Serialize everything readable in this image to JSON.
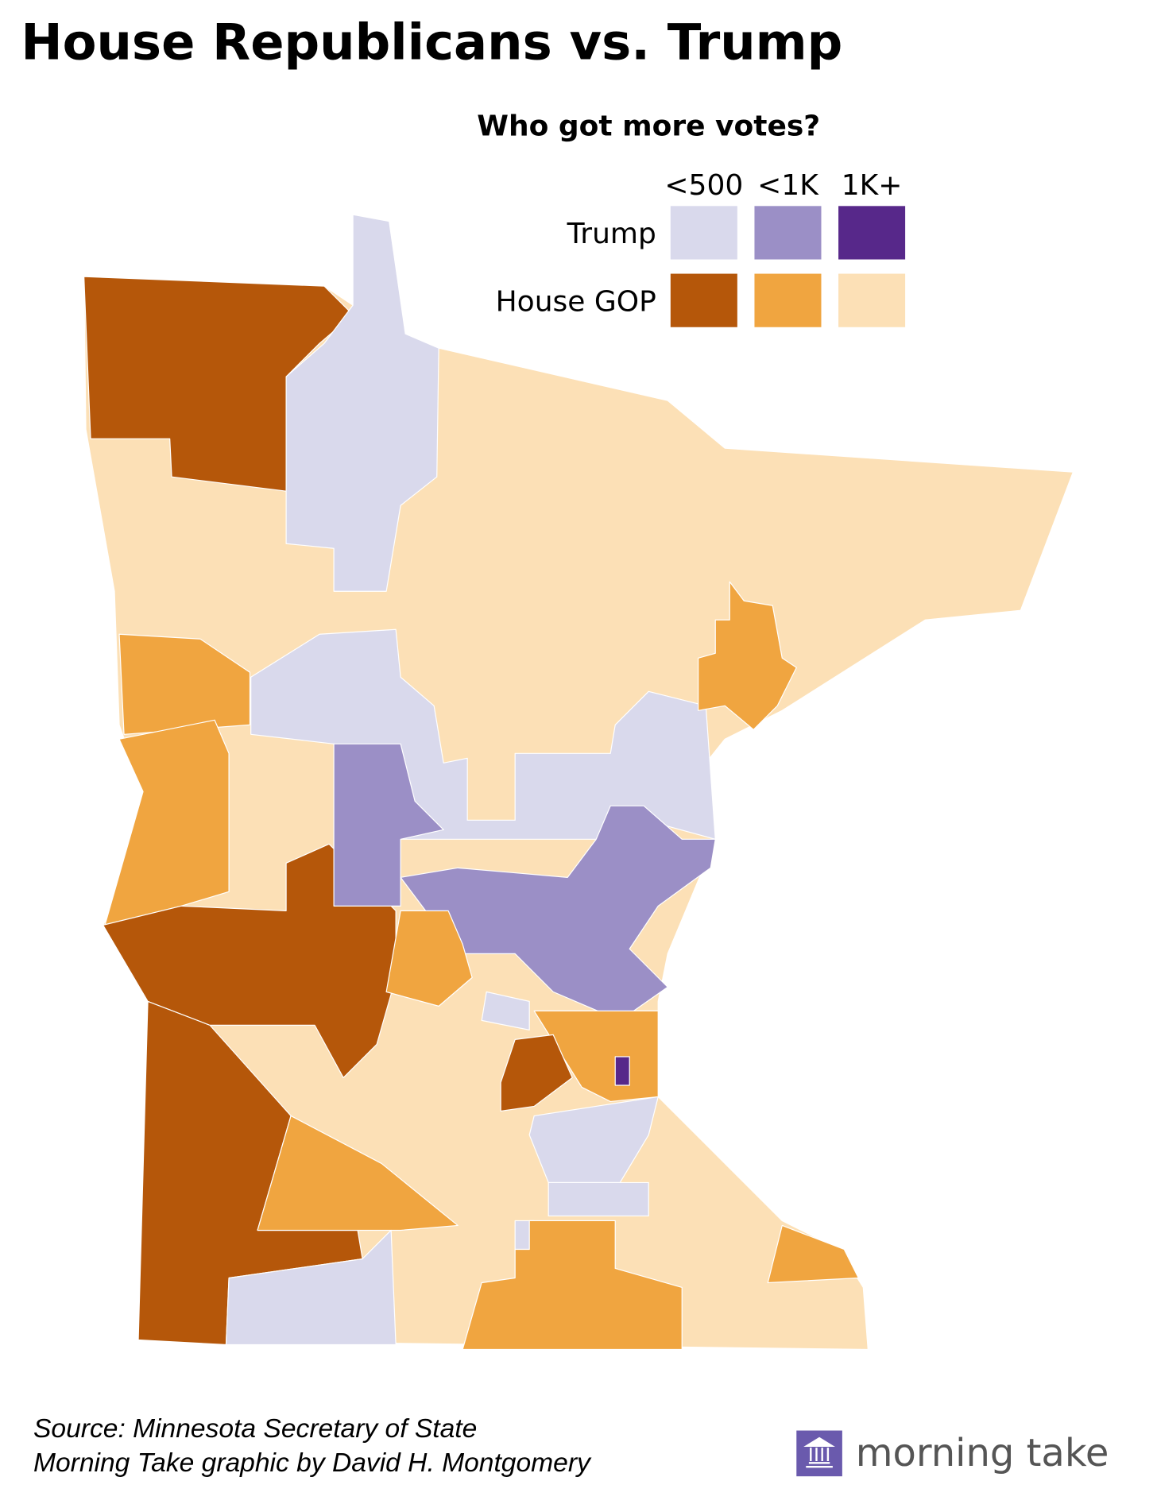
{
  "title": "House Republicans vs. Trump",
  "legend": {
    "title": "Who got more votes?",
    "columns": [
      "<500",
      "<1K",
      "1K+"
    ],
    "rows": [
      {
        "label": "Trump",
        "colors": [
          "#d9d9ec",
          "#9b8fc6",
          "#57288a"
        ]
      },
      {
        "label": "House GOP",
        "colors": [
          "#b5570a",
          "#f0a540",
          "#fce0b6"
        ]
      }
    ]
  },
  "source": [
    "Source: Minnesota Secretary of State",
    "Morning Take graphic by David H. Montgomery"
  ],
  "brand": "morning take"
}
